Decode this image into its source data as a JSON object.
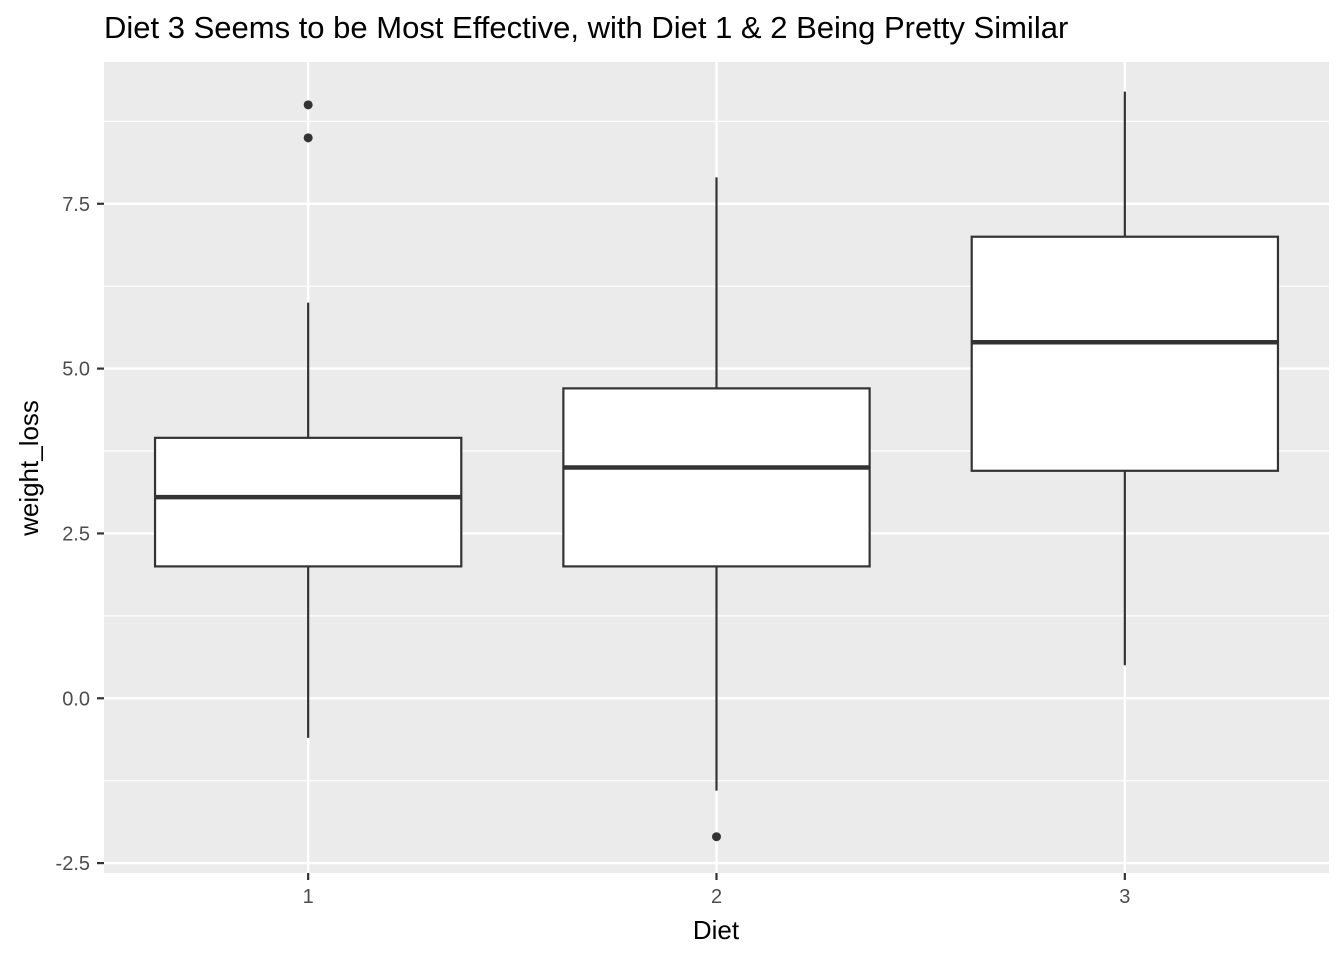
{
  "chart_data": {
    "type": "boxplot",
    "title": "Diet 3 Seems to be Most Effective, with Diet 1 & 2 Being Pretty Similar",
    "xlabel": "Diet",
    "ylabel": "weight_loss",
    "categories": [
      "1",
      "2",
      "3"
    ],
    "ylim": [
      -2.65,
      9.65
    ],
    "yticks": [
      -2.5,
      0.0,
      2.5,
      5.0,
      7.5
    ],
    "ytick_labels": [
      "-2.5",
      "0.0",
      "2.5",
      "5.0",
      "7.5"
    ],
    "boxes": [
      {
        "category": "1",
        "whisker_low": -0.6,
        "q1": 2.0,
        "median": 3.05,
        "q3": 3.95,
        "whisker_high": 6.0,
        "outliers": [
          8.5,
          9.0
        ]
      },
      {
        "category": "2",
        "whisker_low": -1.4,
        "q1": 2.0,
        "median": 3.5,
        "q3": 4.7,
        "whisker_high": 7.9,
        "outliers": [
          -2.1
        ]
      },
      {
        "category": "3",
        "whisker_low": 0.5,
        "q1": 3.45,
        "median": 5.4,
        "q3": 7.0,
        "whisker_high": 9.2,
        "outliers": []
      }
    ],
    "grid": true,
    "colors": {
      "panel": "#ebebeb",
      "grid": "#ffffff",
      "box_fill": "#ffffff",
      "box_line": "#333333",
      "text": "#4d4d4d"
    }
  }
}
